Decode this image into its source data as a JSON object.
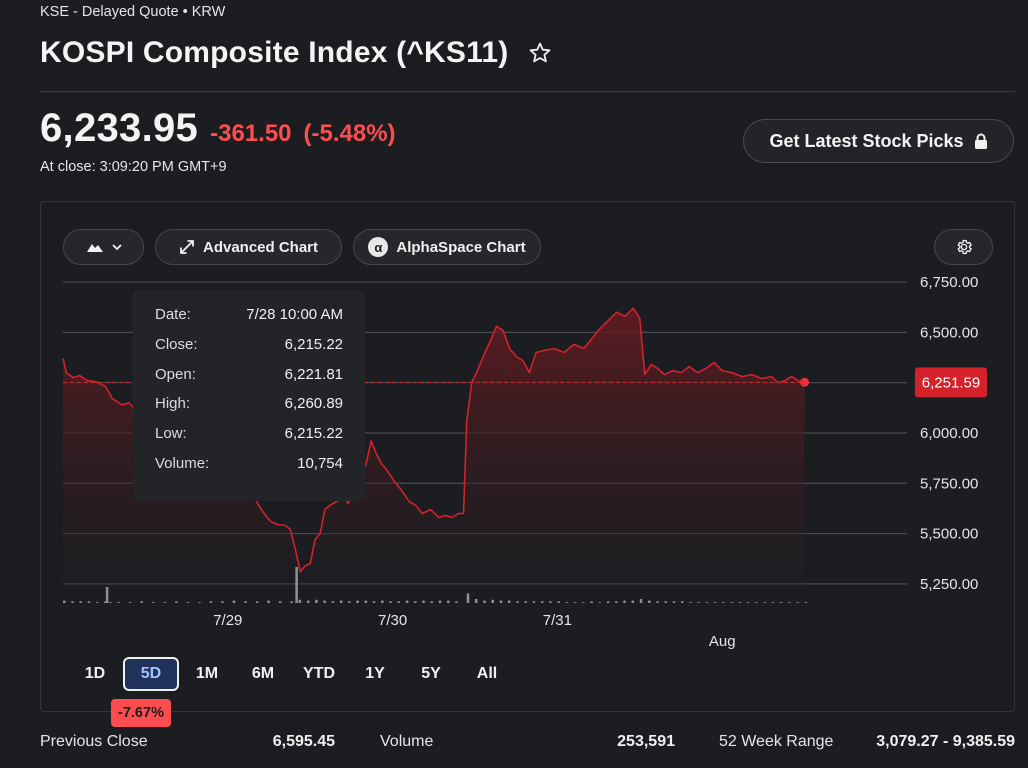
{
  "header": {
    "quote_source": "KSE - Delayed Quote • KRW",
    "title": "KOSPI Composite Index (^KS11)",
    "price": "6,233.95",
    "change": "-361.50",
    "change_pct": "(-5.48%)",
    "close_time": "At close: 3:09:20 PM GMT+9",
    "picks_button": "Get Latest Stock Picks"
  },
  "toolbar": {
    "advanced_chart": "Advanced Chart",
    "alphaspace_chart": "AlphaSpace Chart",
    "alpha_glyph": "α"
  },
  "tooltip": {
    "rows": [
      {
        "label": "Date:",
        "value": "7/28 10:00 AM"
      },
      {
        "label": "Close:",
        "value": "6,215.22"
      },
      {
        "label": "Open:",
        "value": "6,221.81"
      },
      {
        "label": "High:",
        "value": "6,260.89"
      },
      {
        "label": "Low:",
        "value": "6,215.22"
      },
      {
        "label": "Volume:",
        "value": "10,754"
      }
    ]
  },
  "ranges": {
    "buttons": [
      "1D",
      "5D",
      "1M",
      "6M",
      "YTD",
      "1Y",
      "5Y",
      "All"
    ],
    "active": "5D",
    "perf_badge": "-7.67%"
  },
  "stats": {
    "prev_close_label": "Previous Close",
    "prev_close_value": "6,595.45",
    "volume_label": "Volume",
    "volume_value": "253,591",
    "range_label": "52 Week Range",
    "range_value": "3,079.27 - 9,385.59"
  },
  "colors": {
    "line": "#d2222c",
    "negative": "#ff4d4f",
    "grid": "#4a4b50",
    "volume": "#8f9196"
  },
  "chart_data": {
    "type": "line",
    "ylim": [
      5160,
      6800
    ],
    "y_ticks": [
      "6,750.00",
      "6,500.00",
      "6,250.00",
      "6,000.00",
      "5,750.00",
      "5,500.00",
      "5,250.00"
    ],
    "y_tick_values": [
      6750,
      6500,
      6250,
      6000,
      5750,
      5500,
      5250
    ],
    "x_labels": [
      {
        "label": "7/29",
        "at": 0.2
      },
      {
        "label": "7/30",
        "at": 0.4
      },
      {
        "label": "7/31",
        "at": 0.6
      },
      {
        "label": "Aug",
        "at": 0.8
      }
    ],
    "current_label": "6,251.59",
    "current_value": 6251.59,
    "reference_value": 6251.59,
    "points": [
      [
        0.0,
        6370
      ],
      [
        0.004,
        6300
      ],
      [
        0.012,
        6275
      ],
      [
        0.02,
        6285
      ],
      [
        0.03,
        6260
      ],
      [
        0.04,
        6255
      ],
      [
        0.052,
        6230
      ],
      [
        0.06,
        6170
      ],
      [
        0.072,
        6140
      ],
      [
        0.08,
        6150
      ],
      [
        0.092,
        6100
      ],
      [
        0.104,
        6120
      ],
      [
        0.116,
        6080
      ],
      [
        0.128,
        6050
      ],
      [
        0.14,
        6080
      ],
      [
        0.152,
        6050
      ],
      [
        0.16,
        6090
      ],
      [
        0.17,
        6160
      ],
      [
        0.178,
        6140
      ],
      [
        0.186,
        6100
      ],
      [
        0.196,
        6080
      ],
      [
        0.204,
        5980
      ],
      [
        0.212,
        5860
      ],
      [
        0.22,
        5780
      ],
      [
        0.228,
        5720
      ],
      [
        0.236,
        5650
      ],
      [
        0.244,
        5600
      ],
      [
        0.252,
        5560
      ],
      [
        0.26,
        5545
      ],
      [
        0.27,
        5540
      ],
      [
        0.276,
        5520
      ],
      [
        0.282,
        5420
      ],
      [
        0.288,
        5310
      ],
      [
        0.294,
        5340
      ],
      [
        0.3,
        5350
      ],
      [
        0.306,
        5470
      ],
      [
        0.312,
        5500
      ],
      [
        0.318,
        5620
      ],
      [
        0.324,
        5640
      ],
      [
        0.332,
        5660
      ],
      [
        0.34,
        5680
      ],
      [
        0.346,
        5650
      ],
      [
        0.352,
        5700
      ],
      [
        0.36,
        5770
      ],
      [
        0.368,
        5850
      ],
      [
        0.374,
        5960
      ],
      [
        0.38,
        5900
      ],
      [
        0.386,
        5850
      ],
      [
        0.394,
        5810
      ],
      [
        0.402,
        5760
      ],
      [
        0.41,
        5720
      ],
      [
        0.42,
        5660
      ],
      [
        0.428,
        5640
      ],
      [
        0.436,
        5600
      ],
      [
        0.446,
        5620
      ],
      [
        0.456,
        5580
      ],
      [
        0.464,
        5590
      ],
      [
        0.472,
        5580
      ],
      [
        0.48,
        5600
      ],
      [
        0.486,
        5600
      ],
      [
        0.49,
        6060
      ],
      [
        0.496,
        6250
      ],
      [
        0.502,
        6300
      ],
      [
        0.51,
        6380
      ],
      [
        0.518,
        6450
      ],
      [
        0.526,
        6530
      ],
      [
        0.534,
        6510
      ],
      [
        0.542,
        6420
      ],
      [
        0.55,
        6380
      ],
      [
        0.558,
        6360
      ],
      [
        0.566,
        6300
      ],
      [
        0.574,
        6400
      ],
      [
        0.584,
        6410
      ],
      [
        0.596,
        6420
      ],
      [
        0.608,
        6400
      ],
      [
        0.62,
        6440
      ],
      [
        0.632,
        6420
      ],
      [
        0.642,
        6470
      ],
      [
        0.652,
        6520
      ],
      [
        0.662,
        6560
      ],
      [
        0.672,
        6600
      ],
      [
        0.682,
        6580
      ],
      [
        0.692,
        6620
      ],
      [
        0.7,
        6570
      ],
      [
        0.706,
        6290
      ],
      [
        0.714,
        6340
      ],
      [
        0.722,
        6320
      ],
      [
        0.73,
        6290
      ],
      [
        0.74,
        6310
      ],
      [
        0.75,
        6300
      ],
      [
        0.76,
        6330
      ],
      [
        0.77,
        6300
      ],
      [
        0.78,
        6320
      ],
      [
        0.79,
        6350
      ],
      [
        0.8,
        6310
      ],
      [
        0.812,
        6300
      ],
      [
        0.824,
        6280
      ],
      [
        0.836,
        6290
      ],
      [
        0.848,
        6270
      ],
      [
        0.86,
        6280
      ],
      [
        0.868,
        6250
      ],
      [
        0.876,
        6260
      ],
      [
        0.884,
        6280
      ],
      [
        0.892,
        6260
      ],
      [
        0.9,
        6252
      ]
    ],
    "volume": [
      [
        0.0,
        3
      ],
      [
        0.01,
        2
      ],
      [
        0.02,
        2
      ],
      [
        0.03,
        2
      ],
      [
        0.04,
        1
      ],
      [
        0.05,
        2
      ],
      [
        0.052,
        20
      ],
      [
        0.056,
        1
      ],
      [
        0.066,
        1
      ],
      [
        0.08,
        1
      ],
      [
        0.094,
        2
      ],
      [
        0.108,
        1
      ],
      [
        0.122,
        1
      ],
      [
        0.136,
        2
      ],
      [
        0.15,
        1
      ],
      [
        0.164,
        1
      ],
      [
        0.178,
        2
      ],
      [
        0.192,
        2
      ],
      [
        0.206,
        3
      ],
      [
        0.22,
        2
      ],
      [
        0.234,
        2
      ],
      [
        0.248,
        3
      ],
      [
        0.262,
        2
      ],
      [
        0.276,
        2
      ],
      [
        0.282,
        45
      ],
      [
        0.286,
        4
      ],
      [
        0.296,
        3
      ],
      [
        0.306,
        4
      ],
      [
        0.316,
        3
      ],
      [
        0.326,
        2
      ],
      [
        0.336,
        3
      ],
      [
        0.346,
        2
      ],
      [
        0.356,
        3
      ],
      [
        0.366,
        3
      ],
      [
        0.376,
        2
      ],
      [
        0.386,
        3
      ],
      [
        0.396,
        2
      ],
      [
        0.406,
        2
      ],
      [
        0.416,
        3
      ],
      [
        0.426,
        2
      ],
      [
        0.436,
        3
      ],
      [
        0.446,
        2
      ],
      [
        0.456,
        3
      ],
      [
        0.466,
        3
      ],
      [
        0.476,
        2
      ],
      [
        0.49,
        12
      ],
      [
        0.5,
        5
      ],
      [
        0.51,
        3
      ],
      [
        0.52,
        4
      ],
      [
        0.53,
        3
      ],
      [
        0.54,
        3
      ],
      [
        0.55,
        2
      ],
      [
        0.56,
        2
      ],
      [
        0.57,
        2
      ],
      [
        0.58,
        2
      ],
      [
        0.59,
        2
      ],
      [
        0.6,
        2
      ],
      [
        0.61,
        1
      ],
      [
        0.62,
        1
      ],
      [
        0.63,
        1
      ],
      [
        0.64,
        2
      ],
      [
        0.65,
        1
      ],
      [
        0.66,
        2
      ],
      [
        0.67,
        2
      ],
      [
        0.68,
        3
      ],
      [
        0.69,
        3
      ],
      [
        0.7,
        5
      ],
      [
        0.71,
        3
      ],
      [
        0.72,
        2
      ],
      [
        0.73,
        2
      ],
      [
        0.74,
        2
      ],
      [
        0.75,
        2
      ],
      [
        0.76,
        1
      ],
      [
        0.77,
        1
      ],
      [
        0.78,
        1
      ],
      [
        0.79,
        1
      ],
      [
        0.8,
        1
      ],
      [
        0.81,
        1
      ],
      [
        0.82,
        1
      ],
      [
        0.83,
        1
      ],
      [
        0.84,
        1
      ],
      [
        0.85,
        1
      ],
      [
        0.86,
        1
      ],
      [
        0.87,
        1
      ],
      [
        0.88,
        1
      ],
      [
        0.89,
        1
      ],
      [
        0.9,
        1
      ]
    ]
  }
}
